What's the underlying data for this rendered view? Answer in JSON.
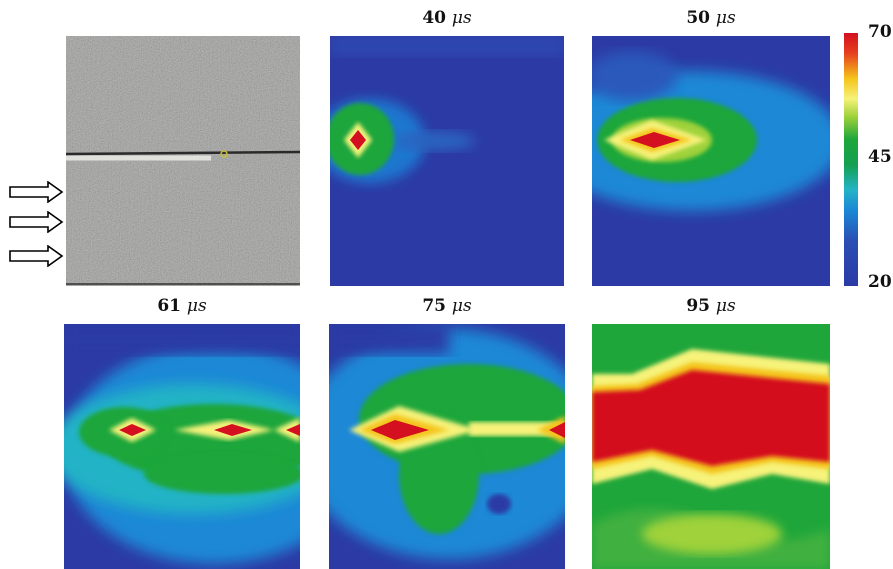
{
  "panels": [
    {
      "id": "photo",
      "label": ""
    },
    {
      "id": "t40",
      "time_value": "40",
      "unit": "μs"
    },
    {
      "id": "t50",
      "time_value": "50",
      "unit": "μs"
    },
    {
      "id": "t61",
      "time_value": "61",
      "unit": "μs"
    },
    {
      "id": "t75",
      "time_value": "75",
      "unit": "μs"
    },
    {
      "id": "t95",
      "time_value": "95",
      "unit": "μs"
    }
  ],
  "colorbar": {
    "ticks": [
      "70",
      "45",
      "20"
    ],
    "colors": [
      "#d40f1f",
      "#f4c41a",
      "#1fa63a",
      "#1a88d6",
      "#2c3aa5"
    ]
  },
  "arrows": {
    "count": 3,
    "direction": "right",
    "icon": "right-arrow-outline-icon"
  }
}
